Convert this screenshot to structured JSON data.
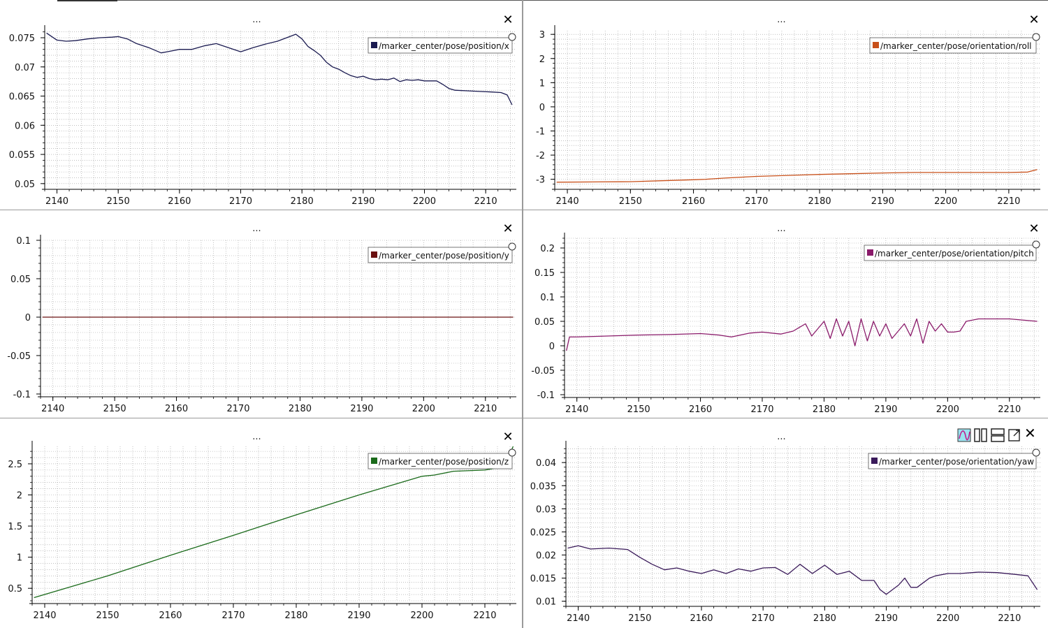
{
  "panels": [
    {
      "title": "...",
      "close_label": "✕",
      "chart_data": {
        "type": "line",
        "series": [
          {
            "name": "/marker_center/pose/position/x",
            "color": "#1a1a50",
            "x": [
              2138.3,
              2140,
              2141.5,
              2143,
              2145,
              2147,
              2149,
              2150,
              2151.5,
              2153,
              2155,
              2157,
              2158,
              2160,
              2162,
              2164,
              2166,
              2168,
              2170,
              2172,
              2174,
              2176,
              2178,
              2179,
              2180,
              2181,
              2182,
              2183,
              2184,
              2185,
              2186,
              2187,
              2188,
              2189,
              2190,
              2191,
              2192,
              2193,
              2194,
              2195,
              2196,
              2197,
              2198,
              2199,
              2200,
              2201,
              2202,
              2203,
              2204,
              2205,
              2207,
              2209,
              2211,
              2212.5,
              2213.5,
              2214.3
            ],
            "y": [
              0.0758,
              0.0746,
              0.0744,
              0.0745,
              0.0748,
              0.075,
              0.0751,
              0.0752,
              0.0748,
              0.074,
              0.0733,
              0.0724,
              0.0726,
              0.073,
              0.073,
              0.0736,
              0.074,
              0.0733,
              0.0726,
              0.0733,
              0.0739,
              0.0744,
              0.0752,
              0.0756,
              0.0748,
              0.0735,
              0.0728,
              0.072,
              0.0708,
              0.07,
              0.0696,
              0.069,
              0.0685,
              0.0682,
              0.0684,
              0.068,
              0.0678,
              0.0679,
              0.0678,
              0.0681,
              0.0675,
              0.0678,
              0.0677,
              0.0678,
              0.0676,
              0.0676,
              0.0676,
              0.067,
              0.0663,
              0.066,
              0.0659,
              0.0658,
              0.0657,
              0.0656,
              0.0652,
              0.0635
            ]
          }
        ],
        "xlim": [
          2138,
          2215
        ],
        "ylim": [
          0.0495,
          0.0762
        ],
        "xticks": [
          2140,
          2150,
          2160,
          2170,
          2180,
          2190,
          2200,
          2210
        ],
        "yticks": [
          0.05,
          0.055,
          0.06,
          0.065,
          0.07,
          0.075
        ],
        "ytick_labels": [
          "0.05",
          "0.055",
          "0.06",
          "0.065",
          "0.07",
          "0.075"
        ],
        "grid": true,
        "legend": "top-right"
      }
    },
    {
      "title": "...",
      "close_label": "✕",
      "chart_data": {
        "type": "line",
        "series": [
          {
            "name": "/marker_center/pose/orientation/roll",
            "color": "#c8501a",
            "x": [
              2138.3,
              2145,
              2150,
              2155,
              2160,
              2162,
              2165,
              2170,
              2175,
              2180,
              2185,
              2190,
              2195,
              2200,
              2205,
              2210,
              2213,
              2214.5
            ],
            "y": [
              -3.12,
              -3.11,
              -3.1,
              -3.06,
              -3.02,
              -3.0,
              -2.95,
              -2.88,
              -2.84,
              -2.8,
              -2.77,
              -2.74,
              -2.72,
              -2.72,
              -2.72,
              -2.72,
              -2.7,
              -2.6
            ]
          }
        ],
        "xlim": [
          2138,
          2215
        ],
        "ylim": [
          -3.3,
          3.15
        ],
        "xticks": [
          2140,
          2150,
          2160,
          2170,
          2180,
          2190,
          2200,
          2210
        ],
        "yticks": [
          -3,
          -2,
          -1,
          0,
          1,
          2,
          3
        ],
        "ytick_labels": [
          "-3",
          "-2",
          "-1",
          "0",
          "1",
          "2",
          "3"
        ],
        "grid": true,
        "legend": "top-right"
      }
    },
    {
      "title": "...",
      "close_label": "✕",
      "chart_data": {
        "type": "line",
        "series": [
          {
            "name": "/marker_center/pose/position/y",
            "color": "#6a1010",
            "x": [
              2138.3,
              2214.5
            ],
            "y": [
              0,
              0
            ]
          }
        ],
        "xlim": [
          2138,
          2215
        ],
        "ylim": [
          -0.1,
          0.1
        ],
        "xticks": [
          2140,
          2150,
          2160,
          2170,
          2180,
          2190,
          2200,
          2210
        ],
        "yticks": [
          -0.1,
          -0.05,
          0,
          0.05,
          0.1
        ],
        "ytick_labels": [
          "-0.1",
          "-0.05",
          "0",
          "0.05",
          "0.1"
        ],
        "grid": true,
        "legend": "top-right"
      }
    },
    {
      "title": "...",
      "close_label": "✕",
      "chart_data": {
        "type": "line",
        "series": [
          {
            "name": "/marker_center/pose/orientation/pitch",
            "color": "#8a1a6a",
            "x": [
              2138.3,
              2138.8,
              2140,
              2145,
              2150,
              2155,
              2160,
              2163,
              2165,
              2168,
              2170,
              2173,
              2175,
              2177,
              2178,
              2180,
              2181,
              2182,
              2183,
              2184,
              2185,
              2186,
              2187,
              2188,
              2189,
              2190,
              2191,
              2192,
              2193,
              2194,
              2195,
              2196,
              2197,
              2198,
              2199,
              2200,
              2201,
              2202,
              2203,
              2205,
              2210,
              2214.5
            ],
            "y": [
              -0.01,
              0.018,
              0.018,
              0.02,
              0.022,
              0.023,
              0.025,
              0.022,
              0.018,
              0.026,
              0.028,
              0.024,
              0.03,
              0.045,
              0.02,
              0.05,
              0.015,
              0.055,
              0.02,
              0.05,
              0.0,
              0.055,
              0.01,
              0.05,
              0.02,
              0.045,
              0.015,
              0.03,
              0.045,
              0.02,
              0.055,
              0.005,
              0.05,
              0.03,
              0.045,
              0.028,
              0.028,
              0.03,
              0.05,
              0.055,
              0.055,
              0.05
            ]
          }
        ],
        "xlim": [
          2138,
          2215
        ],
        "ylim": [
          -0.1,
          0.22
        ],
        "xticks": [
          2140,
          2150,
          2160,
          2170,
          2180,
          2190,
          2200,
          2210
        ],
        "yticks": [
          -0.1,
          -0.05,
          0,
          0.05,
          0.1,
          0.15,
          0.2
        ],
        "ytick_labels": [
          "-0.1",
          "-0.05",
          "0",
          "0.05",
          "0.1",
          "0.15",
          "0.2"
        ],
        "grid": true,
        "legend": "top-right"
      }
    },
    {
      "title": "...",
      "close_label": "✕",
      "chart_data": {
        "type": "line",
        "series": [
          {
            "name": "/marker_center/pose/position/z",
            "color": "#1a6a1a",
            "x": [
              2138.3,
              2150,
              2160,
              2170,
              2180,
              2190,
              2195,
              2200,
              2202,
              2205,
              2210,
              2213,
              2214.5
            ],
            "y": [
              0.35,
              0.7,
              1.03,
              1.35,
              1.68,
              2.0,
              2.15,
              2.3,
              2.32,
              2.38,
              2.4,
              2.45,
              2.78
            ]
          }
        ],
        "xlim": [
          2138,
          2215
        ],
        "ylim": [
          0.3,
          2.78
        ],
        "xticks": [
          2140,
          2150,
          2160,
          2170,
          2180,
          2190,
          2200,
          2210
        ],
        "yticks": [
          0.5,
          1,
          1.5,
          2,
          2.5
        ],
        "ytick_labels": [
          "0.5",
          "1",
          "1.5",
          "2",
          "2.5"
        ],
        "grid": true,
        "legend": "top-right"
      }
    },
    {
      "title": "...",
      "close_label": "✕",
      "chart_data": {
        "type": "line",
        "series": [
          {
            "name": "/marker_center/pose/orientation/yaw",
            "color": "#3a1a5a",
            "x": [
              2138.3,
              2140,
              2142,
              2145,
              2148,
              2150,
              2152,
              2154,
              2156,
              2158,
              2160,
              2162,
              2164,
              2166,
              2168,
              2170,
              2172,
              2174,
              2176,
              2178,
              2180,
              2182,
              2184,
              2186,
              2188,
              2189,
              2190,
              2191,
              2192,
              2193,
              2194,
              2195,
              2196,
              2197,
              2198,
              2200,
              2202,
              2205,
              2208,
              2211,
              2213,
              2214.5
            ],
            "y": [
              0.0215,
              0.022,
              0.0213,
              0.0215,
              0.0212,
              0.0195,
              0.018,
              0.0168,
              0.0172,
              0.0165,
              0.016,
              0.0168,
              0.016,
              0.017,
              0.0165,
              0.0172,
              0.0173,
              0.0158,
              0.018,
              0.016,
              0.0178,
              0.0158,
              0.0165,
              0.0145,
              0.0145,
              0.0125,
              0.0115,
              0.0125,
              0.0135,
              0.015,
              0.013,
              0.013,
              0.014,
              0.015,
              0.0155,
              0.016,
              0.016,
              0.0163,
              0.0162,
              0.0158,
              0.0155,
              0.0125
            ]
          }
        ],
        "xlim": [
          2138,
          2215
        ],
        "ylim": [
          0.0095,
          0.0435
        ],
        "xticks": [
          2140,
          2150,
          2160,
          2170,
          2180,
          2190,
          2200,
          2210
        ],
        "yticks": [
          0.01,
          0.015,
          0.02,
          0.025,
          0.03,
          0.035,
          0.04
        ],
        "ytick_labels": [
          "0.01",
          "0.015",
          "0.02",
          "0.025",
          "0.03",
          "0.035",
          "0.04"
        ],
        "grid": true,
        "legend": "top-right"
      }
    }
  ],
  "toolbar_icons": [
    "plot-type-icon",
    "split-vertical-icon",
    "split-horizontal-icon",
    "expand-icon",
    "close-icon"
  ],
  "toolbar_close_label": "✕"
}
